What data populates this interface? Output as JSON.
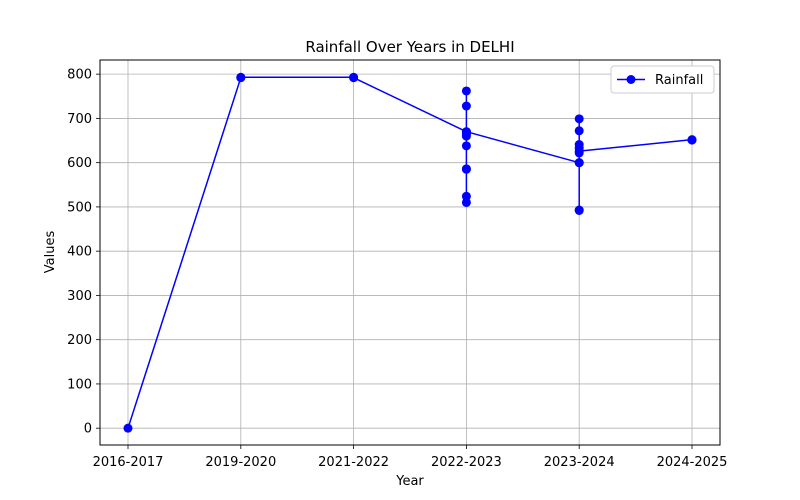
{
  "chart_data": {
    "type": "line",
    "title": "Rainfall Over Years in DELHI",
    "xlabel": "Year",
    "ylabel": "Values",
    "categories": [
      "2016-2017",
      "2019-2020",
      "2021-2022",
      "2022-2023",
      "2023-2024",
      "2024-2025"
    ],
    "ylim": [
      -38,
      832
    ],
    "yticks": [
      0,
      100,
      200,
      300,
      400,
      500,
      600,
      700,
      800
    ],
    "grid": true,
    "legend_position": "top-right",
    "line_color": "#0000ff",
    "series": [
      {
        "name": "Rainfall",
        "points": [
          {
            "x": "2016-2017",
            "y": 0
          },
          {
            "x": "2019-2020",
            "y": 792
          },
          {
            "x": "2019-2020",
            "y": 793
          },
          {
            "x": "2021-2022",
            "y": 793
          },
          {
            "x": "2021-2022",
            "y": 792
          },
          {
            "x": "2022-2023",
            "y": 670
          },
          {
            "x": "2022-2023",
            "y": 762
          },
          {
            "x": "2022-2023",
            "y": 728
          },
          {
            "x": "2022-2023",
            "y": 665
          },
          {
            "x": "2022-2023",
            "y": 660
          },
          {
            "x": "2022-2023",
            "y": 638
          },
          {
            "x": "2022-2023",
            "y": 586
          },
          {
            "x": "2022-2023",
            "y": 524
          },
          {
            "x": "2022-2023",
            "y": 510
          },
          {
            "x": "2022-2023",
            "y": 585
          },
          {
            "x": "2022-2023",
            "y": 670
          },
          {
            "x": "2023-2024",
            "y": 600
          },
          {
            "x": "2023-2024",
            "y": 699
          },
          {
            "x": "2023-2024",
            "y": 672
          },
          {
            "x": "2023-2024",
            "y": 641
          },
          {
            "x": "2023-2024",
            "y": 633
          },
          {
            "x": "2023-2024",
            "y": 622
          },
          {
            "x": "2023-2024",
            "y": 600
          },
          {
            "x": "2023-2024",
            "y": 493
          },
          {
            "x": "2023-2024",
            "y": 492
          },
          {
            "x": "2023-2024",
            "y": 626
          },
          {
            "x": "2024-2025",
            "y": 652
          },
          {
            "x": "2024-2025",
            "y": 651
          }
        ]
      }
    ]
  }
}
